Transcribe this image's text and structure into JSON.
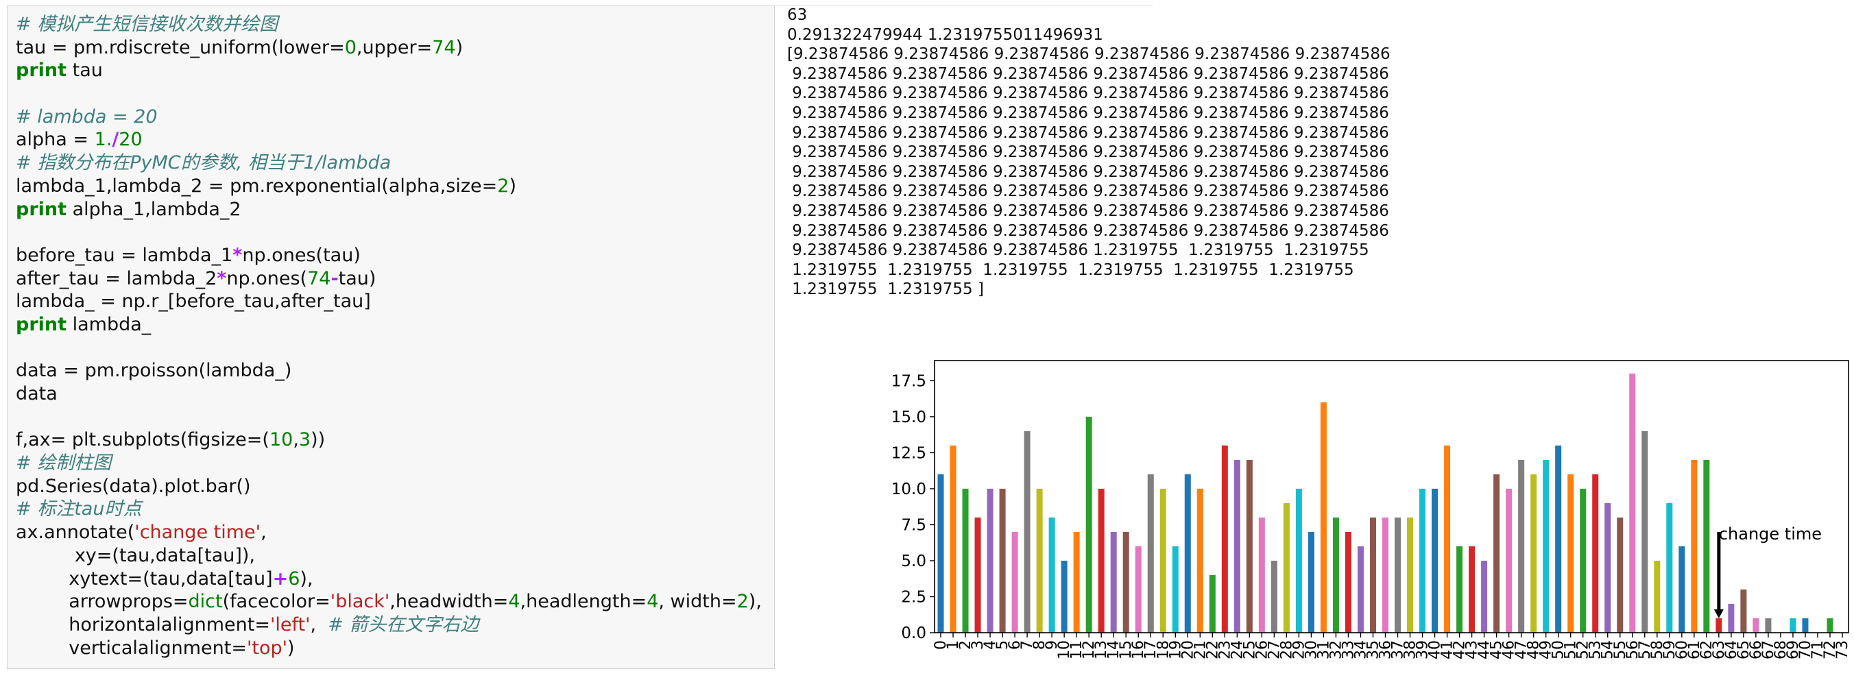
{
  "code_cell": {
    "lines": [
      [
        {
          "t": "# 模拟产生短信接收次数并绘图",
          "c": "comment"
        }
      ],
      [
        {
          "t": "tau = pm.rdiscrete_uniform(lower=",
          "c": "plain"
        },
        {
          "t": "0",
          "c": "number"
        },
        {
          "t": ",upper=",
          "c": "plain"
        },
        {
          "t": "74",
          "c": "number"
        },
        {
          "t": ")",
          "c": "plain"
        }
      ],
      [
        {
          "t": "print",
          "c": "keyword"
        },
        {
          "t": " tau",
          "c": "plain"
        }
      ],
      [],
      [
        {
          "t": "# lambda = 20",
          "c": "comment"
        }
      ],
      [
        {
          "t": "alpha = ",
          "c": "plain"
        },
        {
          "t": "1.",
          "c": "number"
        },
        {
          "t": "/",
          "c": "op"
        },
        {
          "t": "20",
          "c": "number"
        }
      ],
      [
        {
          "t": "# 指数分布在PyMC的参数, 相当于1/lambda",
          "c": "comment"
        }
      ],
      [
        {
          "t": "lambda_1,lambda_2 = pm.rexponential(alpha,size=",
          "c": "plain"
        },
        {
          "t": "2",
          "c": "number"
        },
        {
          "t": ")",
          "c": "plain"
        }
      ],
      [
        {
          "t": "print",
          "c": "keyword"
        },
        {
          "t": " alpha_1,lambda_2",
          "c": "plain"
        }
      ],
      [],
      [
        {
          "t": "before_tau = lambda_1",
          "c": "plain"
        },
        {
          "t": "*",
          "c": "op"
        },
        {
          "t": "np.ones(tau)",
          "c": "plain"
        }
      ],
      [
        {
          "t": "after_tau = lambda_2",
          "c": "plain"
        },
        {
          "t": "*",
          "c": "op"
        },
        {
          "t": "np.ones(",
          "c": "plain"
        },
        {
          "t": "74",
          "c": "number"
        },
        {
          "t": "-",
          "c": "op"
        },
        {
          "t": "tau)",
          "c": "plain"
        }
      ],
      [
        {
          "t": "lambda_ = np.r_[before_tau,after_tau]",
          "c": "plain"
        }
      ],
      [
        {
          "t": "print",
          "c": "keyword"
        },
        {
          "t": " lambda_",
          "c": "plain"
        }
      ],
      [],
      [
        {
          "t": "data = pm.rpoisson(lambda_)",
          "c": "plain"
        }
      ],
      [
        {
          "t": "data",
          "c": "plain"
        }
      ],
      [],
      [
        {
          "t": "f,ax= plt.subplots(figsize=(",
          "c": "plain"
        },
        {
          "t": "10",
          "c": "number"
        },
        {
          "t": ",",
          "c": "plain"
        },
        {
          "t": "3",
          "c": "number"
        },
        {
          "t": "))",
          "c": "plain"
        }
      ],
      [
        {
          "t": "# 绘制柱图",
          "c": "comment"
        }
      ],
      [
        {
          "t": "pd.Series(data).plot.bar()",
          "c": "plain"
        }
      ],
      [
        {
          "t": "# 标注tau时点",
          "c": "comment"
        }
      ],
      [
        {
          "t": "ax.annotate(",
          "c": "plain"
        },
        {
          "t": "'change time'",
          "c": "string"
        },
        {
          "t": ",",
          "c": "plain"
        }
      ],
      [
        {
          "t": "          xy=(tau,data[tau]),",
          "c": "plain"
        }
      ],
      [
        {
          "t": "         xytext=(tau,data[tau]",
          "c": "plain"
        },
        {
          "t": "+",
          "c": "op"
        },
        {
          "t": "6",
          "c": "number"
        },
        {
          "t": "),",
          "c": "plain"
        }
      ],
      [
        {
          "t": "         arrowprops=",
          "c": "plain"
        },
        {
          "t": "dict",
          "c": "builtin"
        },
        {
          "t": "(facecolor=",
          "c": "plain"
        },
        {
          "t": "'black'",
          "c": "string"
        },
        {
          "t": ",headwidth=",
          "c": "plain"
        },
        {
          "t": "4",
          "c": "number"
        },
        {
          "t": ",headlength=",
          "c": "plain"
        },
        {
          "t": "4",
          "c": "number"
        },
        {
          "t": ", width=",
          "c": "plain"
        },
        {
          "t": "2",
          "c": "number"
        },
        {
          "t": "),",
          "c": "plain"
        }
      ],
      [
        {
          "t": "         horizontalalignment=",
          "c": "plain"
        },
        {
          "t": "'left'",
          "c": "string"
        },
        {
          "t": ",  ",
          "c": "plain"
        },
        {
          "t": "# 箭头在文字右边",
          "c": "comment"
        }
      ],
      [
        {
          "t": "         verticalalignment=",
          "c": "plain"
        },
        {
          "t": "'top'",
          "c": "string"
        },
        {
          "t": ")",
          "c": "plain"
        }
      ]
    ]
  },
  "output": {
    "lines": [
      "63",
      "0.291322479944 1.2319755011496931",
      "[9.23874586 9.23874586 9.23874586 9.23874586 9.23874586 9.23874586",
      " 9.23874586 9.23874586 9.23874586 9.23874586 9.23874586 9.23874586",
      " 9.23874586 9.23874586 9.23874586 9.23874586 9.23874586 9.23874586",
      " 9.23874586 9.23874586 9.23874586 9.23874586 9.23874586 9.23874586",
      " 9.23874586 9.23874586 9.23874586 9.23874586 9.23874586 9.23874586",
      " 9.23874586 9.23874586 9.23874586 9.23874586 9.23874586 9.23874586",
      " 9.23874586 9.23874586 9.23874586 9.23874586 9.23874586 9.23874586",
      " 9.23874586 9.23874586 9.23874586 9.23874586 9.23874586 9.23874586",
      " 9.23874586 9.23874586 9.23874586 9.23874586 9.23874586 9.23874586",
      " 9.23874586 9.23874586 9.23874586 9.23874586 9.23874586 9.23874586",
      " 9.23874586 9.23874586 9.23874586 1.2319755  1.2319755  1.2319755",
      " 1.2319755  1.2319755  1.2319755  1.2319755  1.2319755  1.2319755",
      " 1.2319755  1.2319755 ]"
    ]
  },
  "chart_data": {
    "type": "bar",
    "title": "",
    "xlabel": "",
    "ylabel": "",
    "categories": [
      "0",
      "1",
      "2",
      "3",
      "4",
      "5",
      "6",
      "7",
      "8",
      "9",
      "10",
      "11",
      "12",
      "13",
      "14",
      "15",
      "16",
      "17",
      "18",
      "19",
      "20",
      "21",
      "22",
      "23",
      "24",
      "25",
      "26",
      "27",
      "28",
      "29",
      "30",
      "31",
      "32",
      "33",
      "34",
      "35",
      "36",
      "37",
      "38",
      "39",
      "40",
      "41",
      "42",
      "43",
      "44",
      "45",
      "46",
      "47",
      "48",
      "49",
      "50",
      "51",
      "52",
      "53",
      "54",
      "55",
      "56",
      "57",
      "58",
      "59",
      "60",
      "61",
      "62",
      "63",
      "64",
      "65",
      "66",
      "67",
      "68",
      "69",
      "70",
      "71",
      "72",
      "73"
    ],
    "values": [
      11,
      13,
      10,
      8,
      10,
      10,
      7,
      14,
      10,
      8,
      5,
      7,
      15,
      10,
      7,
      7,
      6,
      11,
      10,
      6,
      11,
      10,
      4,
      13,
      12,
      12,
      8,
      5,
      9,
      10,
      7,
      16,
      8,
      7,
      6,
      8,
      8,
      8,
      8,
      10,
      10,
      13,
      6,
      6,
      5,
      11,
      10,
      12,
      11,
      12,
      13,
      11,
      10,
      11,
      9,
      8,
      18,
      14,
      5,
      9,
      6,
      12,
      12,
      1,
      2,
      3,
      1,
      1,
      0,
      1,
      1,
      0,
      1,
      0
    ],
    "ylim": [
      0,
      18.9
    ],
    "yticks": [
      "0.0",
      "2.5",
      "5.0",
      "7.5",
      "10.0",
      "12.5",
      "15.0",
      "17.5"
    ],
    "grid": false,
    "colors": [
      "#1f77b4",
      "#ff7f0e",
      "#2ca02c",
      "#d62728",
      "#9467bd",
      "#8c564b",
      "#e377c2",
      "#7f7f7f",
      "#bcbd22",
      "#17becf"
    ],
    "annotation": {
      "text": "change time",
      "x": 63,
      "y": 1
    }
  }
}
